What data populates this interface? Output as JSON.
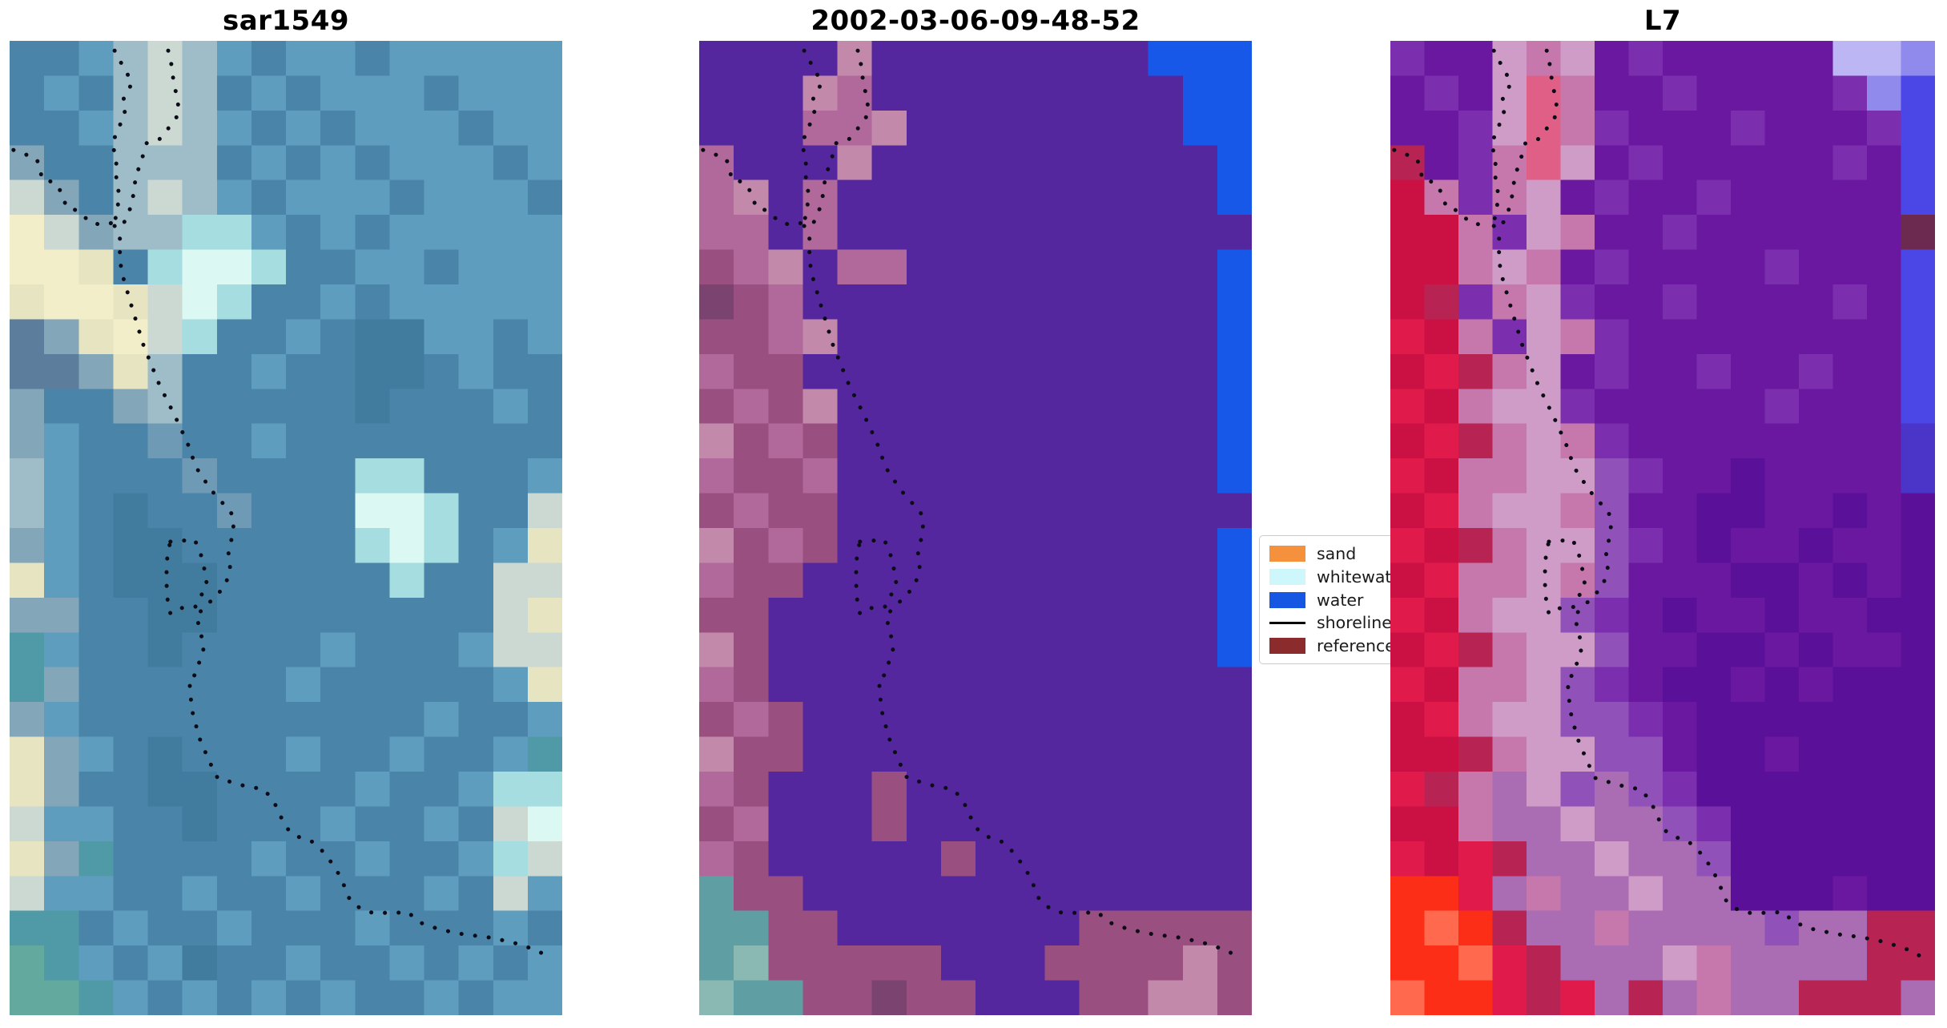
{
  "figure": {
    "background": "#ffffff"
  },
  "chart_data": {
    "type": "heatmap",
    "description": "Three-panel satellite image comparison with dotted shoreline overlays and a classification legend",
    "panels": [
      {
        "title": "sar1549",
        "grid_cols": 16,
        "grid_rows": 28,
        "palette": {
          "a": "#4a85a9",
          "b": "#5e9dbd",
          "c": "#417c9e",
          "d": "#9fbdc8",
          "e": "#ccd8d2",
          "f": "#f2eec9",
          "g": "#5d7d9c",
          "h": "#dcf8f3",
          "i": "#a5dde0",
          "j": "#4f9aa6",
          "k": "#63a99e",
          "l": "#84a6b9",
          "m": "#e7e4c2",
          "n": "#6f9ab5"
        },
        "rows": [
          "aabdedbabbabbbbb",
          "abadedababbbabbb",
          "aabdedbababbbabb",
          "laadddabababbbab",
          "eladedbabbbabbba",
          "felddiibababbbbb",
          "ffmaihhiaabbabbb",
          "mffmehiaababbbbb",
          "glmfeiaabaccbbab",
          "gglmdaabaaccabaa",
          "laaldaaaaacaaaba",
          "lbaanaabaaaaaaaa",
          "dbaaanaaaaiiaaab",
          "dbacaanaaahhiaae",
          "lbaccaaaaaihiabm",
          "mbacccaaaaaiaaee",
          "llaaccaaaaaaaaem",
          "jbaacaaaabaaabee",
          "jlaaaaaabaaaaabm",
          "lbaaaaaaaaaabaab",
          "mlbacaaabaabaabj",
          "mlaaccaaaabaabii",
          "ebbaacaaabaabaeh",
          "mljaaaabaabaabie",
          "ebbaabaabaaabaeb",
          "jjabaabaaabaaaba",
          "kjbabcaabaababab",
          "kkjbabababaababb"
        ]
      },
      {
        "title": "2002-03-06-09-48-52",
        "grid_cols": 16,
        "grid_rows": 28,
        "palette": {
          "P": "#55279f",
          "W": "#1758e8",
          "M": "#b1689a",
          "N": "#994f80",
          "O": "#c289ab",
          "D": "#7a4370",
          "T": "#5f9fa4",
          "U": "#8ab8b2"
        },
        "rows": [
          "PPPPOPPPPPPPPWWW",
          "PPPOMPPPPPPPPPWW",
          "PPPMMOPPPPPPPPWW",
          "MPPPOPPPPPPPPPPW",
          "MOPMPPPPPPPPPPPW",
          "MMPMPPPPPPPPPPPP",
          "NMOPMMPPPPPPPPPW",
          "DNMPPPPPPPPPPPPW",
          "NNMOPPPPPPPPPPPW",
          "MNNPPPPPPPPPPPPW",
          "NMNOPPPPPPPPPPPW",
          "ONMNPPPPPPPPPPPW",
          "MNNMPPPPPPPPPPPW",
          "NMNNPPPPPPPPPPPP",
          "ONMNPPPPPPPPPPPW",
          "MNNPPPPPPPPPPPPW",
          "NNPPPPPPPPPPPPPW",
          "ONPPPPPPPPPPPPPW",
          "MNPPPPPPPPPPPPPP",
          "NMNPPPPPPPPPPPPP",
          "ONNPPPPPPPPPPPPP",
          "MNPPPNPPPPPPPPPP",
          "NMPPPNPPPPPPPPPP",
          "MNPPPPPNPPPPPPPP",
          "TNNPPPPPPPPPPPPP",
          "TTNNPPPPPPPNNNNN",
          "TUNNNNNPPPNNNNON",
          "UTTNNDNNPPPNNOON"
        ]
      },
      {
        "title": "L7",
        "grid_cols": 16,
        "grid_rows": 28,
        "palette": {
          "v": "#6a18a0",
          "u": "#5b109a",
          "w": "#7b2fae",
          "x": "#9052b8",
          "p": "#c678ac",
          "q": "#cf9cc8",
          "r": "#cb1144",
          "s": "#e01b4c",
          "t": "#b72453",
          "o": "#fd2e17",
          "n": "#ff6a4e",
          "e": "#df5f87",
          "L": "#bcb6f4",
          "K": "#8f8aec",
          "B": "#4a47e6",
          "C": "#4b35c8",
          "m": "#aa6cb2",
          "d": "#6d2a50"
        },
        "rows": [
          "wvvqpqvwvvvvvLLK",
          "vwvqepvvwvvvvwKB",
          "vvwqepwvvvwvvvwB",
          "tvwpeqvwvvvvvwvB",
          "rpwpqvwvvwvvvvvB",
          "rrpwqpvvwvvvvvvd",
          "rrpqpvwvvvvwvvvB",
          "rtwpqwvvwvvvvwvB",
          "srpwqpwvvvvvvvvB",
          "rstpqvwvvwvvwvvB",
          "srpqqwvvvvvwvvvB",
          "rstpqpwvvvvvvvvC",
          "srppqqxwvvuvvvvC",
          "rspqqpxvvuuvvuvu",
          "srtpqqxwvuvvuvvu",
          "rsppqpxvvvuuvuvu",
          "srpqqxwvuvvuvvuu",
          "rstpqqxvvuuvuvvu",
          "srppqxwvuuvuvuuu",
          "rspqqxxwvuuuuuuu",
          "rrtpqqxxvuuvuuuu",
          "stpmqxmxwuuuuuuu",
          "rrpmmqmmxwuuuuuu",
          "srstmmqmmxuuuuuu",
          "oosmpmmqmmuuuvuu",
          "onotmmpmmmmxmmtt",
          "oonstmmmqpmmmmtt",
          "noostsmtmpmmtttm"
        ]
      }
    ],
    "shoreline_overlay": {
      "color": "#0c0c16",
      "style": "dotted",
      "lines": [
        [
          [
            0.007,
            0.112
          ],
          [
            0.016,
            0.114
          ],
          [
            0.036,
            0.118
          ],
          [
            0.049,
            0.121
          ],
          [
            0.057,
            0.135
          ],
          [
            0.057,
            0.141
          ],
          [
            0.083,
            0.146
          ],
          [
            0.094,
            0.156
          ],
          [
            0.103,
            0.171
          ],
          [
            0.122,
            0.174
          ],
          [
            0.148,
            0.187
          ],
          [
            0.171,
            0.189
          ],
          [
            0.184,
            0.187
          ]
        ],
        [
          [
            0.19,
            0.01
          ],
          [
            0.204,
            0.025
          ],
          [
            0.222,
            0.043
          ],
          [
            0.207,
            0.058
          ],
          [
            0.204,
            0.066
          ],
          [
            0.209,
            0.074
          ],
          [
            0.197,
            0.09
          ],
          [
            0.186,
            0.105
          ],
          [
            0.193,
            0.123
          ],
          [
            0.193,
            0.141
          ],
          [
            0.197,
            0.154
          ],
          [
            0.196,
            0.17
          ],
          [
            0.193,
            0.178
          ],
          [
            0.19,
            0.187
          ]
        ],
        [
          [
            0.287,
            0.01
          ],
          [
            0.293,
            0.025
          ],
          [
            0.297,
            0.043
          ],
          [
            0.303,
            0.058
          ],
          [
            0.307,
            0.074
          ],
          [
            0.294,
            0.085
          ],
          [
            0.287,
            0.09
          ],
          [
            0.271,
            0.101
          ],
          [
            0.248,
            0.105
          ],
          [
            0.239,
            0.122
          ],
          [
            0.228,
            0.14
          ],
          [
            0.225,
            0.155
          ],
          [
            0.219,
            0.171
          ],
          [
            0.206,
            0.188
          ]
        ],
        [
          [
            0.19,
            0.19
          ],
          [
            0.201,
            0.205
          ],
          [
            0.199,
            0.221
          ],
          [
            0.203,
            0.238
          ],
          [
            0.22,
            0.271
          ],
          [
            0.242,
            0.312
          ],
          [
            0.271,
            0.353
          ],
          [
            0.3,
            0.386
          ],
          [
            0.322,
            0.413
          ],
          [
            0.332,
            0.429
          ],
          [
            0.345,
            0.446
          ],
          [
            0.357,
            0.454
          ],
          [
            0.365,
            0.461
          ],
          [
            0.378,
            0.47
          ],
          [
            0.39,
            0.477
          ],
          [
            0.4,
            0.483
          ],
          [
            0.406,
            0.493
          ],
          [
            0.403,
            0.508
          ],
          [
            0.396,
            0.525
          ],
          [
            0.399,
            0.541
          ],
          [
            0.391,
            0.558
          ],
          [
            0.378,
            0.567
          ],
          [
            0.338,
            0.59
          ],
          [
            0.345,
            0.606
          ],
          [
            0.352,
            0.622
          ],
          [
            0.343,
            0.638
          ],
          [
            0.335,
            0.651
          ],
          [
            0.325,
            0.654
          ],
          [
            0.327,
            0.669
          ],
          [
            0.33,
            0.687
          ],
          [
            0.343,
            0.715
          ],
          [
            0.358,
            0.735
          ],
          [
            0.37,
            0.75
          ],
          [
            0.377,
            0.757
          ],
          [
            0.397,
            0.76
          ],
          [
            0.42,
            0.764
          ],
          [
            0.441,
            0.766
          ],
          [
            0.462,
            0.769
          ],
          [
            0.48,
            0.783
          ],
          [
            0.493,
            0.799
          ],
          [
            0.507,
            0.812
          ],
          [
            0.523,
            0.817
          ],
          [
            0.548,
            0.822
          ],
          [
            0.567,
            0.832
          ],
          [
            0.59,
            0.849
          ],
          [
            0.603,
            0.864
          ],
          [
            0.616,
            0.882
          ],
          [
            0.636,
            0.891
          ],
          [
            0.657,
            0.895
          ],
          [
            0.678,
            0.895
          ],
          [
            0.699,
            0.895
          ],
          [
            0.72,
            0.894
          ],
          [
            0.743,
            0.905
          ],
          [
            0.778,
            0.912
          ],
          [
            0.822,
            0.917
          ],
          [
            0.865,
            0.92
          ],
          [
            0.909,
            0.925
          ],
          [
            0.952,
            0.933
          ],
          [
            0.975,
            0.94
          ]
        ],
        [
          [
            0.291,
            0.514
          ],
          [
            0.312,
            0.513
          ],
          [
            0.335,
            0.512
          ],
          [
            0.346,
            0.527
          ],
          [
            0.352,
            0.541
          ],
          [
            0.357,
            0.558
          ],
          [
            0.336,
            0.581
          ],
          [
            0.312,
            0.582
          ],
          [
            0.291,
            0.588
          ],
          [
            0.286,
            0.574
          ],
          [
            0.284,
            0.558
          ],
          [
            0.284,
            0.541
          ],
          [
            0.286,
            0.525
          ],
          [
            0.291,
            0.514
          ]
        ]
      ]
    },
    "legend": {
      "background": "#ffffff",
      "border_color": "#cccccc",
      "entries": [
        {
          "label": "sand",
          "color": "#f5913d",
          "type": "patch"
        },
        {
          "label": "whitewater",
          "color": "#cdf7fa",
          "type": "patch"
        },
        {
          "label": "water",
          "color": "#1557e2",
          "type": "patch"
        },
        {
          "label": "shoreline",
          "color": "#000000",
          "type": "line"
        },
        {
          "label": "reference",
          "color": "#8b2b2b",
          "type": "patch"
        }
      ]
    }
  }
}
